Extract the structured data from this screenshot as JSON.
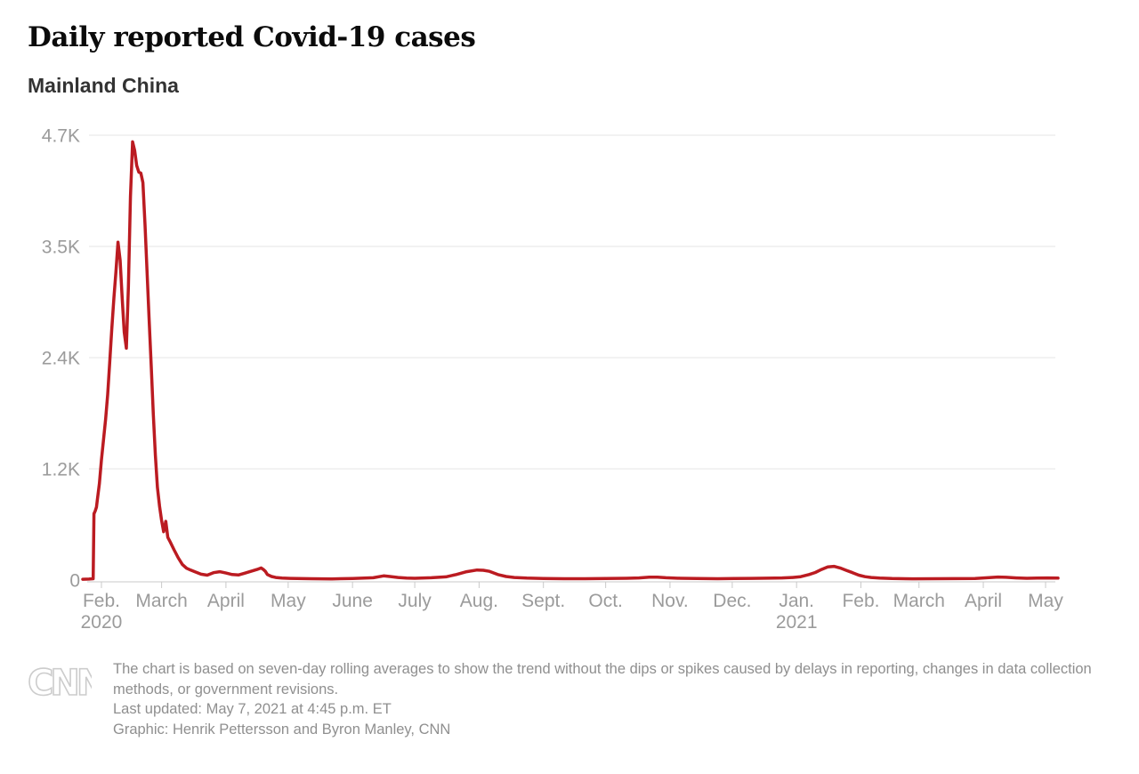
{
  "header": {
    "title": "Daily reported Covid-19 cases",
    "subtitle": "Mainland China"
  },
  "chart_data": {
    "type": "line",
    "title": "Daily reported Covid-19 cases",
    "subtitle": "Mainland China",
    "series_name": "Daily reported Covid-19 cases, seven-day rolling average",
    "line_color": "#bb1b21",
    "grid": "horizontal-only",
    "legend_position": "none",
    "ylim": [
      0,
      4700
    ],
    "y_ticks": [
      {
        "label": "4.7K",
        "value": 4700
      },
      {
        "label": "3.5K",
        "value": 3525
      },
      {
        "label": "2.4K",
        "value": 2350
      },
      {
        "label": "1.2K",
        "value": 1175
      },
      {
        "label": "0",
        "value": 0
      }
    ],
    "x_start_date": "2020-01-23",
    "x_end_date": "2021-05-07",
    "x_ticks": [
      {
        "label": "Feb.",
        "day": 9,
        "year": "2020"
      },
      {
        "label": "March",
        "day": 38
      },
      {
        "label": "April",
        "day": 69
      },
      {
        "label": "May",
        "day": 99
      },
      {
        "label": "June",
        "day": 130
      },
      {
        "label": "July",
        "day": 160
      },
      {
        "label": "Aug.",
        "day": 191
      },
      {
        "label": "Sept.",
        "day": 222
      },
      {
        "label": "Oct.",
        "day": 252
      },
      {
        "label": "Nov.",
        "day": 283
      },
      {
        "label": "Dec.",
        "day": 313
      },
      {
        "label": "Jan.",
        "day": 344,
        "year": "2021"
      },
      {
        "label": "Feb.",
        "day": 375
      },
      {
        "label": "March",
        "day": 403
      },
      {
        "label": "April",
        "day": 434
      },
      {
        "label": "May",
        "day": 464
      }
    ],
    "points_format": "[days since 2020-01-23, cases (7-day rolling avg, estimated from chart)]",
    "points": [
      [
        0,
        8
      ],
      [
        3,
        10
      ],
      [
        5,
        14
      ],
      [
        5.4,
        700
      ],
      [
        6,
        730
      ],
      [
        6.6,
        770
      ],
      [
        7,
        840
      ],
      [
        8,
        1020
      ],
      [
        9,
        1270
      ],
      [
        10,
        1480
      ],
      [
        11,
        1700
      ],
      [
        12,
        1960
      ],
      [
        13,
        2300
      ],
      [
        14,
        2650
      ],
      [
        15,
        2980
      ],
      [
        16,
        3260
      ],
      [
        17,
        3570
      ],
      [
        18,
        3380
      ],
      [
        19,
        2980
      ],
      [
        20,
        2620
      ],
      [
        21,
        2450
      ],
      [
        22,
        3100
      ],
      [
        23,
        4050
      ],
      [
        24,
        4630
      ],
      [
        25,
        4540
      ],
      [
        26,
        4380
      ],
      [
        27,
        4310
      ],
      [
        28,
        4300
      ],
      [
        29,
        4200
      ],
      [
        30,
        3750
      ],
      [
        31,
        3250
      ],
      [
        32,
        2750
      ],
      [
        33,
        2250
      ],
      [
        34,
        1750
      ],
      [
        35,
        1320
      ],
      [
        36,
        980
      ],
      [
        37,
        780
      ],
      [
        38,
        630
      ],
      [
        39,
        510
      ],
      [
        40,
        620
      ],
      [
        41,
        450
      ],
      [
        42,
        410
      ],
      [
        44,
        320
      ],
      [
        46,
        235
      ],
      [
        48,
        165
      ],
      [
        50,
        125
      ],
      [
        52,
        105
      ],
      [
        54,
        88
      ],
      [
        57,
        62
      ],
      [
        60,
        52
      ],
      [
        63,
        78
      ],
      [
        66,
        88
      ],
      [
        69,
        74
      ],
      [
        72,
        58
      ],
      [
        75,
        54
      ],
      [
        78,
        72
      ],
      [
        81,
        92
      ],
      [
        84,
        112
      ],
      [
        86,
        128
      ],
      [
        87,
        112
      ],
      [
        88,
        92
      ],
      [
        89,
        58
      ],
      [
        91,
        38
      ],
      [
        93,
        27
      ],
      [
        96,
        21
      ],
      [
        100,
        18
      ],
      [
        110,
        14
      ],
      [
        120,
        12
      ],
      [
        130,
        16
      ],
      [
        140,
        24
      ],
      [
        145,
        44
      ],
      [
        148,
        38
      ],
      [
        152,
        27
      ],
      [
        156,
        21
      ],
      [
        160,
        19
      ],
      [
        168,
        24
      ],
      [
        175,
        34
      ],
      [
        180,
        58
      ],
      [
        185,
        88
      ],
      [
        190,
        106
      ],
      [
        193,
        103
      ],
      [
        196,
        92
      ],
      [
        200,
        58
      ],
      [
        204,
        38
      ],
      [
        208,
        27
      ],
      [
        214,
        21
      ],
      [
        222,
        17
      ],
      [
        232,
        14
      ],
      [
        242,
        14
      ],
      [
        252,
        16
      ],
      [
        262,
        19
      ],
      [
        268,
        23
      ],
      [
        273,
        30
      ],
      [
        277,
        31
      ],
      [
        281,
        24
      ],
      [
        288,
        19
      ],
      [
        296,
        16
      ],
      [
        306,
        14
      ],
      [
        314,
        16
      ],
      [
        322,
        18
      ],
      [
        330,
        20
      ],
      [
        337,
        23
      ],
      [
        342,
        27
      ],
      [
        346,
        36
      ],
      [
        350,
        58
      ],
      [
        353,
        80
      ],
      [
        356,
        112
      ],
      [
        359,
        138
      ],
      [
        362,
        145
      ],
      [
        365,
        128
      ],
      [
        368,
        102
      ],
      [
        371,
        78
      ],
      [
        374,
        52
      ],
      [
        377,
        36
      ],
      [
        380,
        27
      ],
      [
        384,
        21
      ],
      [
        390,
        16
      ],
      [
        400,
        13
      ],
      [
        410,
        14
      ],
      [
        420,
        15
      ],
      [
        430,
        17
      ],
      [
        436,
        24
      ],
      [
        441,
        32
      ],
      [
        445,
        29
      ],
      [
        450,
        23
      ],
      [
        455,
        19
      ],
      [
        460,
        21
      ],
      [
        465,
        23
      ],
      [
        470,
        21
      ]
    ]
  },
  "footer": {
    "logo": "CNN",
    "note": "The chart is based on seven-day rolling averages to show the trend without the dips or spikes caused by delays in reporting, changes in data collection methods, or government revisions.",
    "updated": "Last updated: May 7, 2021 at 4:45 p.m. ET",
    "credit": "Graphic: Henrik Pettersson and Byron Manley, CNN"
  },
  "colors": {
    "line": "#bb1b21",
    "gridline": "#e4e4e4",
    "axis": "#c9c9c9",
    "axis_text": "#9b9b9b",
    "title_text": "#0b0b0b",
    "subtitle_text": "#333333",
    "footer_text": "#8f8f8f",
    "logo_outline": "#cccccc"
  }
}
